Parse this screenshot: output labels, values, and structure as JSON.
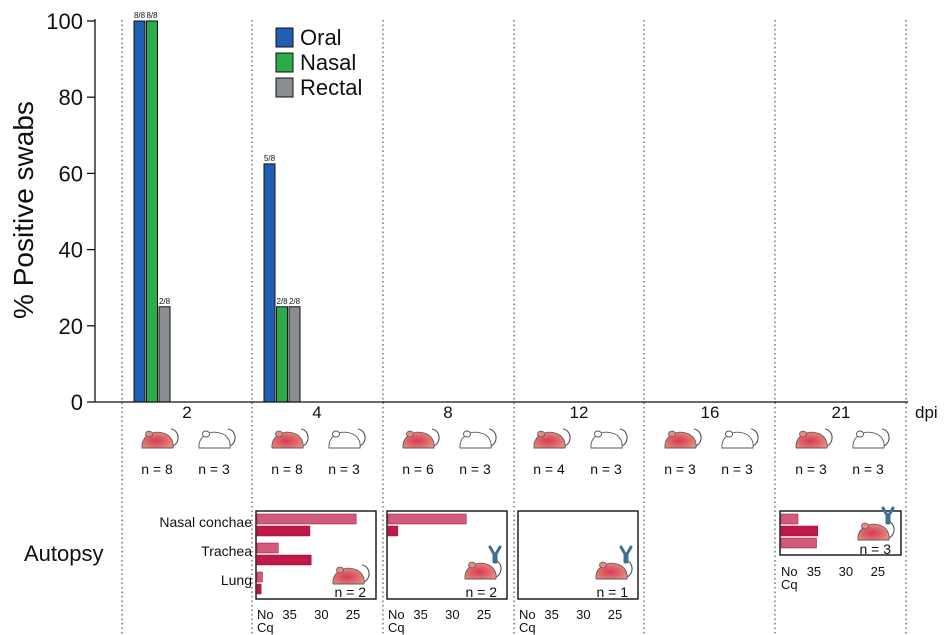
{
  "chart_data": {
    "type": "bar",
    "ylabel": "% Positive swabs",
    "xlabel": "dpi",
    "ylim": [
      0,
      100
    ],
    "yticks": [
      0,
      20,
      40,
      60,
      80,
      100
    ],
    "grid": false,
    "legend_position": "top",
    "categories": [
      "2",
      "4",
      "8",
      "12",
      "16",
      "21"
    ],
    "series": [
      {
        "name": "Oral",
        "color": "#1f5fb4",
        "values": [
          100,
          62.5,
          0,
          0,
          0,
          0
        ],
        "labels": [
          "8/8",
          "5/8",
          "",
          "",
          "",
          ""
        ]
      },
      {
        "name": "Nasal",
        "color": "#2bab4a",
        "values": [
          100,
          25,
          0,
          0,
          0,
          0
        ],
        "labels": [
          "8/8",
          "2/8",
          "",
          "",
          "",
          ""
        ]
      },
      {
        "name": "Rectal",
        "color": "#8a8d91",
        "values": [
          25,
          25,
          0,
          0,
          0,
          0
        ],
        "labels": [
          "2/8",
          "2/8",
          "",
          "",
          "",
          ""
        ]
      }
    ],
    "groups": [
      {
        "infected": "n = 8",
        "control": "n = 3"
      },
      {
        "infected": "n = 8",
        "control": "n = 3"
      },
      {
        "infected": "n = 6",
        "control": "n = 3"
      },
      {
        "infected": "n = 4",
        "control": "n = 3"
      },
      {
        "infected": "n = 3",
        "control": "n = 3"
      },
      {
        "infected": "n = 3",
        "control": "n = 3"
      }
    ],
    "autopsy": {
      "label": "Autopsy",
      "organs": [
        "Nasal conchae",
        "Trachea",
        "Lung"
      ],
      "cq_axis": {
        "ticks": [
          "35",
          "30",
          "25"
        ],
        "no_cq_label_1": "No",
        "no_cq_label_2": "Cq"
      },
      "panels": [
        {
          "dpi": "4",
          "n": "n = 2",
          "antibody": false,
          "bars": [
            {
              "organ": "Nasal conchae",
              "cq": [
                24.5,
                31.8
              ]
            },
            {
              "organ": "Trachea",
              "cq": [
                36.8,
                31.6
              ]
            },
            {
              "organ": "Lung",
              "cq": [
                39.3,
                39.5
              ]
            }
          ]
        },
        {
          "dpi": "8",
          "n": "n = 2",
          "antibody": true,
          "bars": [
            {
              "organ": "Nasal conchae",
              "cq": [
                27.8,
                38.6
              ]
            }
          ]
        },
        {
          "dpi": "12",
          "n": "n = 1",
          "antibody": true,
          "bars": []
        },
        {
          "dpi": "21",
          "n": "n = 3",
          "antibody": true,
          "bars": [
            {
              "organ": "Nasal conchae",
              "cq": [
                37.5,
                34.4,
                34.6
              ]
            }
          ]
        }
      ]
    }
  }
}
